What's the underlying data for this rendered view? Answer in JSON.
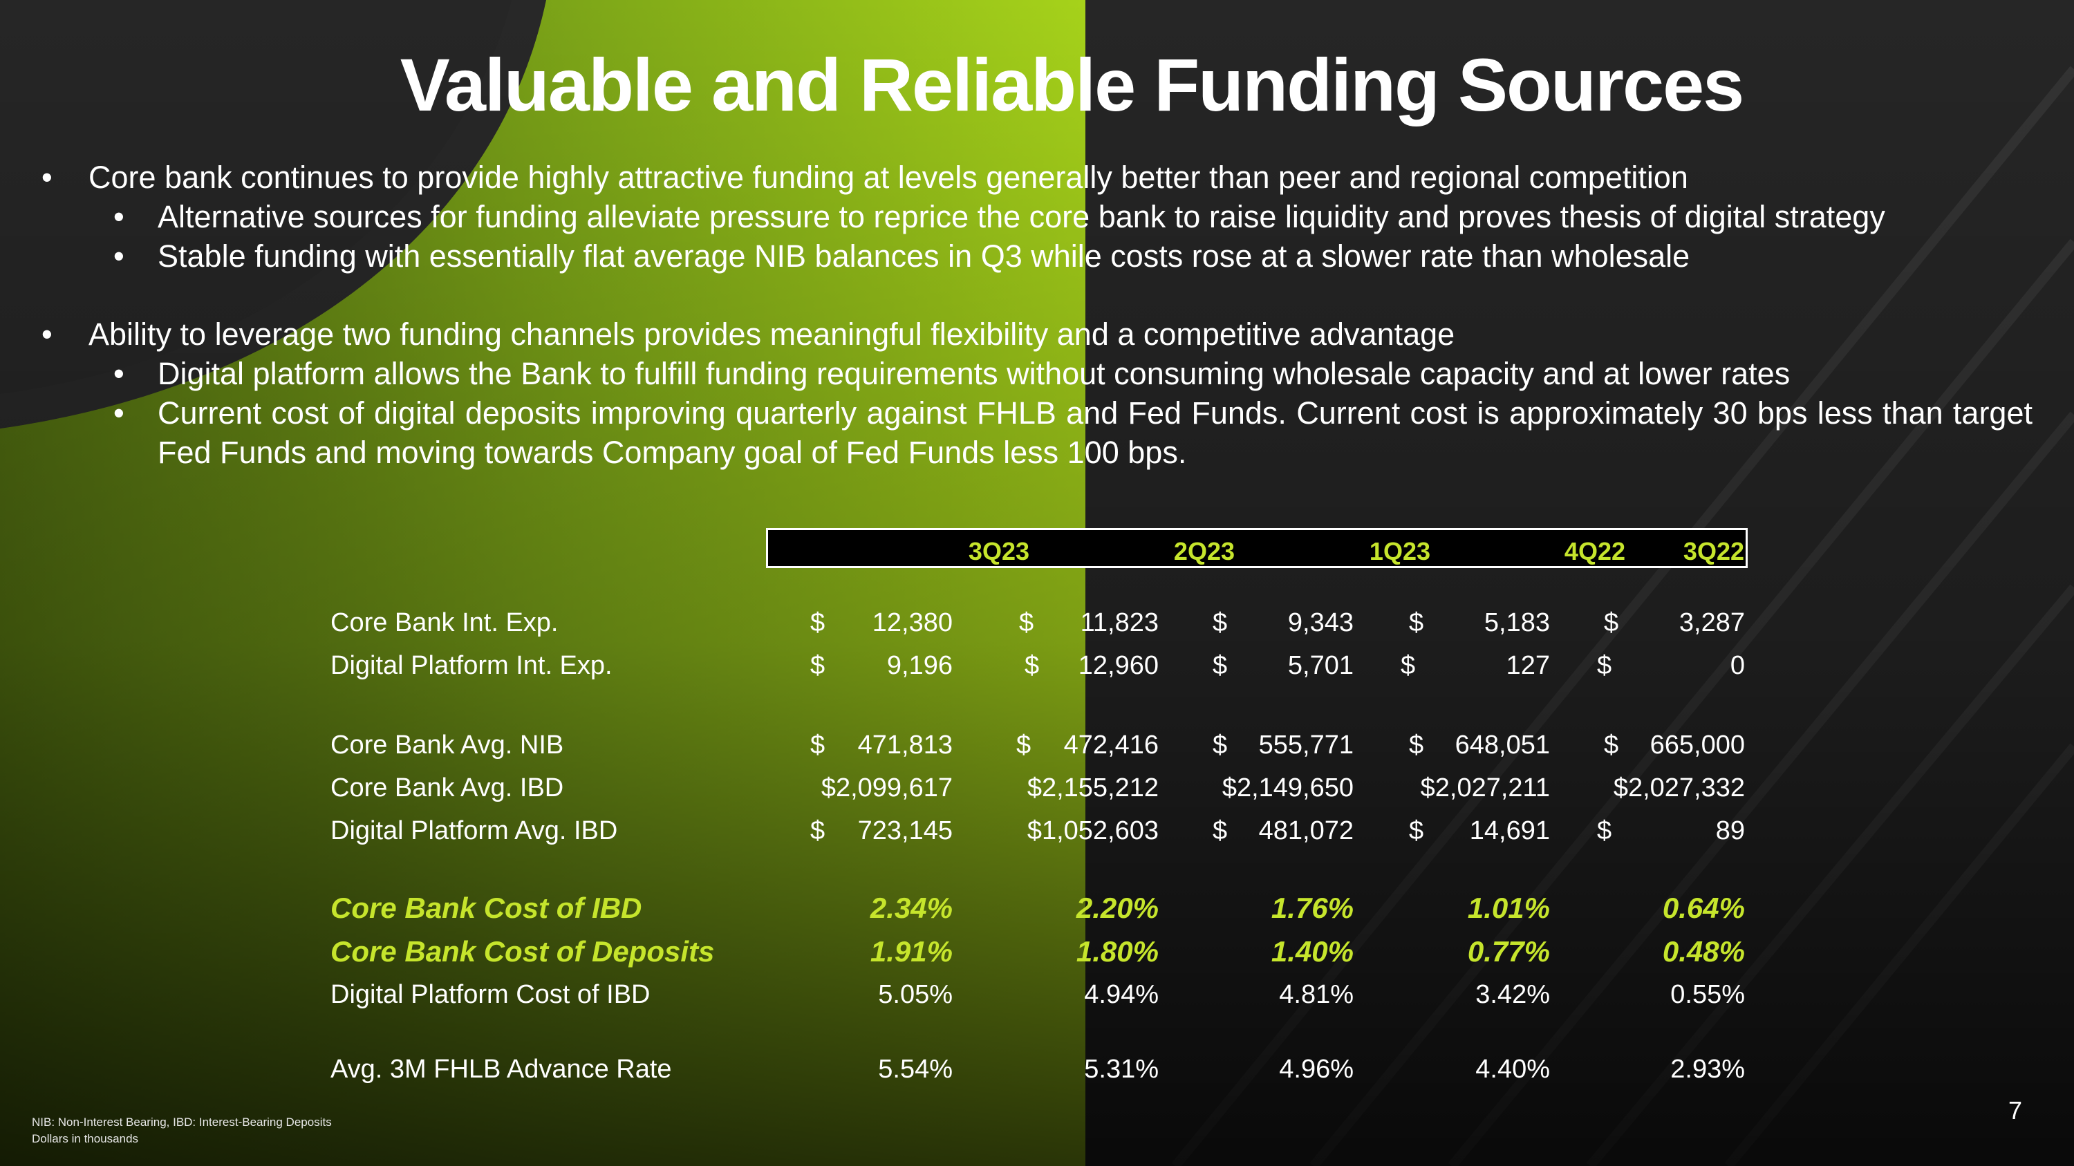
{
  "title": "Valuable and Reliable Funding Sources",
  "bullets": [
    {
      "level": 1,
      "text": "Core bank continues to provide highly attractive funding at levels generally better than peer and regional competition"
    },
    {
      "level": 2,
      "text": "Alternative sources for funding alleviate pressure to reprice the core bank to raise liquidity and proves thesis of digital strategy"
    },
    {
      "level": 2,
      "text": "Stable funding with essentially flat average NIB balances in Q3 while costs rose at a slower rate than wholesale"
    },
    {
      "level": 1,
      "text": "Ability to leverage two funding channels provides meaningful flexibility and a competitive advantage"
    },
    {
      "level": 2,
      "text": "Digital platform allows the Bank to fulfill funding requirements without consuming wholesale capacity and at lower rates"
    },
    {
      "level": 2,
      "text": "Current cost of digital deposits improving quarterly against FHLB and Fed Funds. Current cost is approximately 30 bps less than target Fed Funds and moving towards Company goal of Fed Funds less 100 bps."
    }
  ],
  "table": {
    "quarters": [
      "3Q23",
      "2Q23",
      "1Q23",
      "4Q22",
      "3Q22"
    ],
    "rows": [
      {
        "label": "Core Bank Int. Exp.",
        "dollar": [
          "$",
          "$",
          "$",
          "$",
          "$"
        ],
        "values": [
          "12,380",
          "11,823",
          "9,343",
          "5,183",
          "3,287"
        ]
      },
      {
        "label": "Digital Platform Int. Exp.",
        "dollar": [
          "$",
          "$",
          "$",
          "$",
          "$"
        ],
        "values": [
          "9,196",
          "12,960",
          "5,701",
          "127",
          "0"
        ]
      },
      {
        "label": "Core Bank Avg. NIB",
        "dollar": [
          "$",
          "$",
          "$",
          "$",
          "$"
        ],
        "values": [
          "471,813",
          "472,416",
          "555,771",
          "648,051",
          "665,000"
        ]
      },
      {
        "label": "Core Bank Avg. IBD",
        "dollar": [
          "",
          "",
          "",
          "",
          ""
        ],
        "values": [
          "$2,099,617",
          "$2,155,212",
          "$2,149,650",
          "$2,027,211",
          "$2,027,332"
        ]
      },
      {
        "label": "Digital Platform Avg. IBD",
        "dollar": [
          "$",
          "",
          "$",
          "$",
          "$"
        ],
        "values": [
          "723,145",
          "$1,052,603",
          "481,072",
          "14,691",
          "89"
        ]
      },
      {
        "label": "Core Bank Cost of IBD",
        "dollar": [
          "",
          "",
          "",
          "",
          ""
        ],
        "values": [
          "2.34%",
          "2.20%",
          "1.76%",
          "1.01%",
          "0.64%"
        ]
      },
      {
        "label": "Core Bank Cost of Deposits",
        "dollar": [
          "",
          "",
          "",
          "",
          ""
        ],
        "values": [
          "1.91%",
          "1.80%",
          "1.40%",
          "0.77%",
          "0.48%"
        ]
      },
      {
        "label": "Digital Platform Cost of IBD",
        "dollar": [
          "",
          "",
          "",
          "",
          ""
        ],
        "values": [
          "5.05%",
          "4.94%",
          "4.81%",
          "3.42%",
          "0.55%"
        ]
      },
      {
        "label": "Avg. 3M FHLB Advance Rate",
        "dollar": [
          "",
          "",
          "",
          "",
          ""
        ],
        "values": [
          "5.54%",
          "5.31%",
          "4.96%",
          "4.40%",
          "2.93%"
        ]
      }
    ]
  },
  "footnotes": [
    "NIB: Non-Interest Bearing, IBD: Interest-Bearing Deposits",
    "Dollars in thousands"
  ],
  "page_number": "7",
  "colors": {
    "accent": "#c6e52c",
    "background": "#1e1e1e",
    "text": "#ffffff"
  }
}
